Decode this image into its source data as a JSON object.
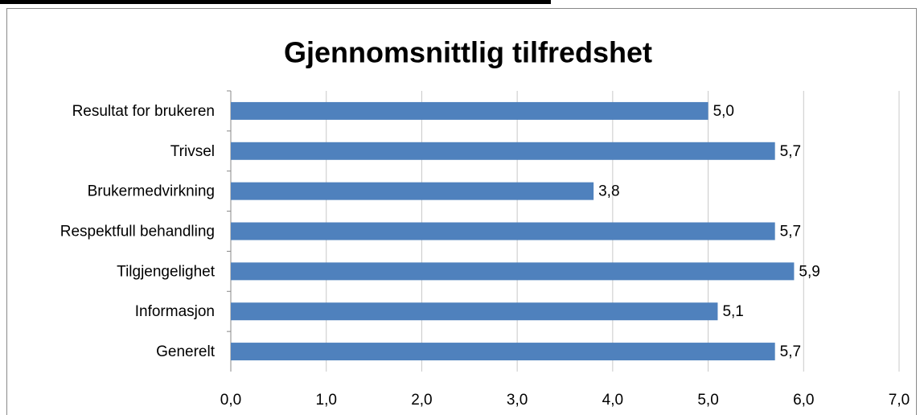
{
  "chart_data": {
    "type": "bar",
    "orientation": "horizontal",
    "title": "Gjennomsnittlig tilfredshet",
    "categories": [
      "Resultat for brukeren",
      "Trivsel",
      "Brukermedvirkning",
      "Respektfull behandling",
      "Tilgjengelighet",
      "Informasjon",
      "Generelt"
    ],
    "values": [
      5.0,
      5.7,
      3.8,
      5.7,
      5.9,
      5.1,
      5.7
    ],
    "value_labels": [
      "5,0",
      "5,7",
      "3,8",
      "5,7",
      "5,9",
      "5,1",
      "5,7"
    ],
    "color": "#4f81bd",
    "xlim": [
      0,
      7
    ],
    "xticks": [
      {
        "value": 0,
        "label": "0,0"
      },
      {
        "value": 1,
        "label": "1,0"
      },
      {
        "value": 2,
        "label": "2,0"
      },
      {
        "value": 3,
        "label": "3,0"
      },
      {
        "value": 4,
        "label": "4,0"
      },
      {
        "value": 5,
        "label": "5,0"
      },
      {
        "value": 6,
        "label": "6,0"
      },
      {
        "value": 7,
        "label": "7,0"
      }
    ],
    "grid": true
  }
}
